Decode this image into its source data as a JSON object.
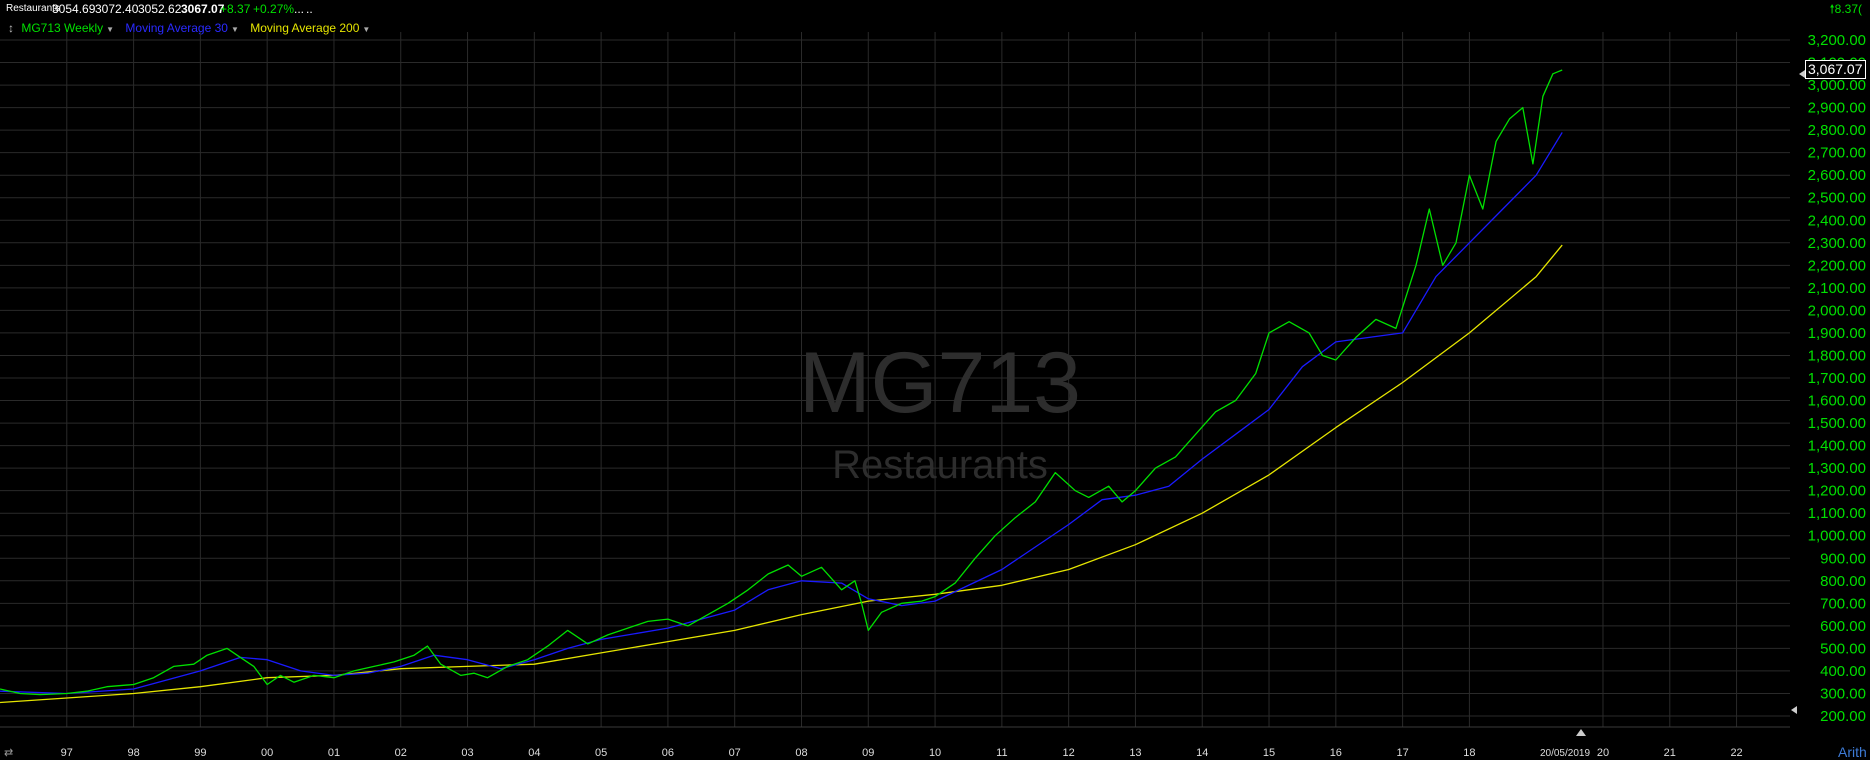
{
  "header": {
    "symbol": "Restaurants",
    "open": "3054.69",
    "high": "3072.40",
    "low": "3052.62",
    "close": "3067.07",
    "change": "+8.37",
    "change_pct": "+0.27%",
    "more": "...",
    "more2": "..",
    "right_change": "8.37("
  },
  "legend": {
    "series1": "MG713 Weekly",
    "series2": "Moving Average 30",
    "series3": "Moving Average 200",
    "colors": {
      "price": "#00e000",
      "ma30": "#1a1aff",
      "ma200": "#e5e500",
      "axis": "#00e000"
    }
  },
  "watermark": {
    "symbol": "MG713",
    "name": "Restaurants"
  },
  "last_value_label": "3,067.07",
  "date_label": "20/05/2019",
  "scale_button": "Arith",
  "chart_data": {
    "type": "line",
    "ylim": [
      200,
      3200
    ],
    "y_ticks": [
      "200.00",
      "300.00",
      "400.00",
      "500.00",
      "600.00",
      "700.00",
      "800.00",
      "900.00",
      "1,000.00",
      "1,100.00",
      "1,200.00",
      "1,300.00",
      "1,400.00",
      "1,500.00",
      "1,600.00",
      "1,700.00",
      "1,800.00",
      "1,900.00",
      "2,000.00",
      "2,100.00",
      "2,200.00",
      "2,300.00",
      "2,400.00",
      "2,500.00",
      "2,600.00",
      "2,700.00",
      "2,800.00",
      "2,900.00",
      "3,000.00",
      "3,100.00",
      "3,200.00"
    ],
    "x_ticks": [
      "97",
      "98",
      "99",
      "00",
      "01",
      "02",
      "03",
      "04",
      "05",
      "06",
      "07",
      "08",
      "09",
      "10",
      "11",
      "12",
      "13",
      "14",
      "15",
      "16",
      "17",
      "18",
      "20",
      "21",
      "22"
    ],
    "x_tick_years": [
      1997,
      1998,
      1999,
      2000,
      2001,
      2002,
      2003,
      2004,
      2005,
      2006,
      2007,
      2008,
      2009,
      2010,
      2011,
      2012,
      2013,
      2014,
      2015,
      2016,
      2017,
      2018,
      2020,
      2021,
      2022
    ],
    "xlim": [
      1996.0,
      2022.8
    ],
    "series": [
      {
        "name": "MG713 Weekly",
        "x": [
          1996.0,
          1996.3,
          1996.6,
          1997.0,
          1997.3,
          1997.6,
          1998.0,
          1998.3,
          1998.6,
          1998.9,
          1999.1,
          1999.4,
          1999.6,
          1999.8,
          2000.0,
          2000.2,
          2000.4,
          2000.7,
          2001.0,
          2001.3,
          2001.6,
          2001.9,
          2002.2,
          2002.4,
          2002.6,
          2002.9,
          2003.1,
          2003.3,
          2003.6,
          2003.9,
          2004.2,
          2004.5,
          2004.8,
          2005.1,
          2005.4,
          2005.7,
          2006.0,
          2006.3,
          2006.6,
          2006.9,
          2007.2,
          2007.5,
          2007.8,
          2008.0,
          2008.3,
          2008.6,
          2008.8,
          2008.9,
          2009.0,
          2009.2,
          2009.5,
          2009.8,
          2010.0,
          2010.3,
          2010.6,
          2010.9,
          2011.2,
          2011.5,
          2011.8,
          2012.1,
          2012.3,
          2012.6,
          2012.8,
          2013.0,
          2013.3,
          2013.6,
          2013.9,
          2014.2,
          2014.5,
          2014.8,
          2015.0,
          2015.3,
          2015.6,
          2015.8,
          2016.0,
          2016.3,
          2016.6,
          2016.9,
          2017.2,
          2017.4,
          2017.6,
          2017.8,
          2018.0,
          2018.2,
          2018.4,
          2018.6,
          2018.8,
          2018.95,
          2019.1,
          2019.25,
          2019.39
        ],
        "y": [
          320,
          300,
          295,
          300,
          310,
          330,
          340,
          370,
          420,
          430,
          470,
          500,
          460,
          420,
          340,
          380,
          350,
          380,
          370,
          400,
          420,
          440,
          470,
          510,
          430,
          380,
          390,
          370,
          420,
          450,
          510,
          580,
          520,
          560,
          590,
          620,
          630,
          600,
          650,
          700,
          760,
          830,
          870,
          820,
          860,
          760,
          800,
          700,
          580,
          660,
          700,
          710,
          730,
          790,
          900,
          1000,
          1080,
          1150,
          1280,
          1200,
          1170,
          1220,
          1150,
          1200,
          1300,
          1350,
          1450,
          1550,
          1600,
          1720,
          1900,
          1950,
          1900,
          1800,
          1780,
          1880,
          1960,
          1920,
          2200,
          2450,
          2200,
          2300,
          2600,
          2450,
          2750,
          2850,
          2900,
          2650,
          2950,
          3050,
          3067
        ]
      },
      {
        "name": "Moving Average 30",
        "x": [
          1996.0,
          1997.0,
          1998.0,
          1999.0,
          1999.6,
          2000.0,
          2000.5,
          2001.0,
          2001.5,
          2002.0,
          2002.5,
          2003.0,
          2003.5,
          2004.0,
          2004.5,
          2005.0,
          2006.0,
          2007.0,
          2007.5,
          2008.0,
          2008.6,
          2009.0,
          2009.5,
          2010.0,
          2011.0,
          2012.0,
          2012.5,
          2013.0,
          2013.5,
          2014.0,
          2014.5,
          2015.0,
          2015.5,
          2016.0,
          2016.5,
          2017.0,
          2017.5,
          2018.0,
          2018.5,
          2019.0,
          2019.39
        ],
        "y": [
          310,
          300,
          320,
          400,
          460,
          450,
          400,
          380,
          390,
          420,
          470,
          450,
          410,
          450,
          500,
          540,
          590,
          670,
          760,
          800,
          790,
          720,
          690,
          710,
          850,
          1050,
          1160,
          1180,
          1220,
          1340,
          1450,
          1560,
          1750,
          1860,
          1880,
          1900,
          2150,
          2300,
          2450,
          2600,
          2790
        ]
      },
      {
        "name": "Moving Average 200",
        "x": [
          1996.0,
          1997.0,
          1998.0,
          1999.0,
          2000.0,
          2001.0,
          2002.0,
          2003.0,
          2004.0,
          2005.0,
          2006.0,
          2007.0,
          2008.0,
          2009.0,
          2010.0,
          2011.0,
          2012.0,
          2013.0,
          2014.0,
          2015.0,
          2016.0,
          2017.0,
          2018.0,
          2019.0,
          2019.39
        ],
        "y": [
          260,
          280,
          300,
          330,
          370,
          380,
          410,
          420,
          430,
          480,
          530,
          580,
          650,
          710,
          740,
          780,
          850,
          960,
          1100,
          1270,
          1480,
          1680,
          1900,
          2150,
          2290
        ]
      }
    ]
  }
}
